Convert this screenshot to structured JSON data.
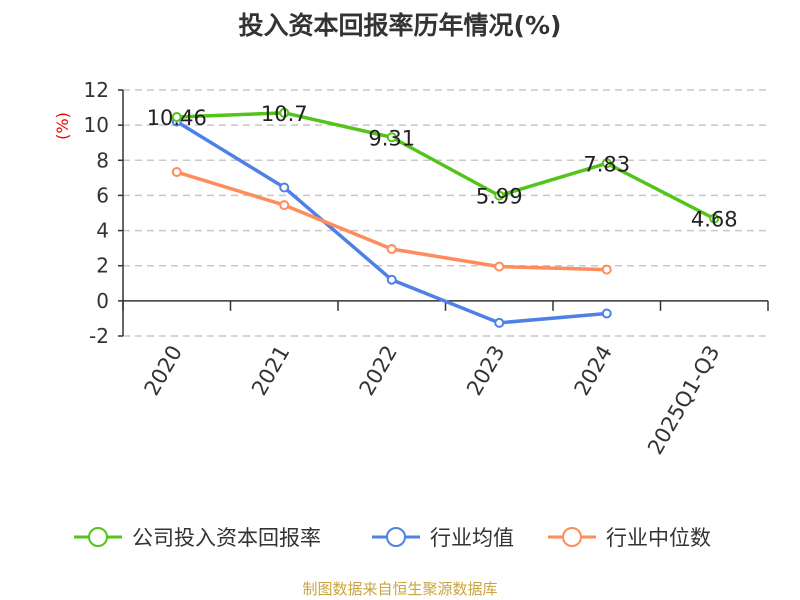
{
  "chart_data": {
    "type": "line",
    "title": "投入资本回报率历年情况(%)",
    "ylabel": "(%)",
    "xlabel": "",
    "categories": [
      "2020",
      "2021",
      "2022",
      "2023",
      "2024",
      "2025Q1-Q3"
    ],
    "ylim": [
      -2,
      12
    ],
    "yticks": [
      -2,
      0,
      2,
      4,
      6,
      8,
      10,
      12
    ],
    "grid": true,
    "legend_position": "bottom",
    "series": [
      {
        "name": "公司投入资本回报率",
        "color": "#52c41a",
        "values": [
          10.46,
          10.7,
          9.31,
          5.99,
          7.83,
          4.68
        ],
        "labels": [
          "10.46",
          "10.7",
          "9.31",
          "5.99",
          "7.83",
          "4.68"
        ]
      },
      {
        "name": "行业均值",
        "color": "#4e80e6",
        "values": [
          10.2,
          6.45,
          1.2,
          -1.25,
          -0.72,
          null
        ]
      },
      {
        "name": "行业中位数",
        "color": "#ff8c5a",
        "values": [
          7.33,
          5.45,
          2.95,
          1.95,
          1.78,
          null
        ]
      }
    ]
  },
  "footer": "制图数据来自恒生聚源数据库"
}
